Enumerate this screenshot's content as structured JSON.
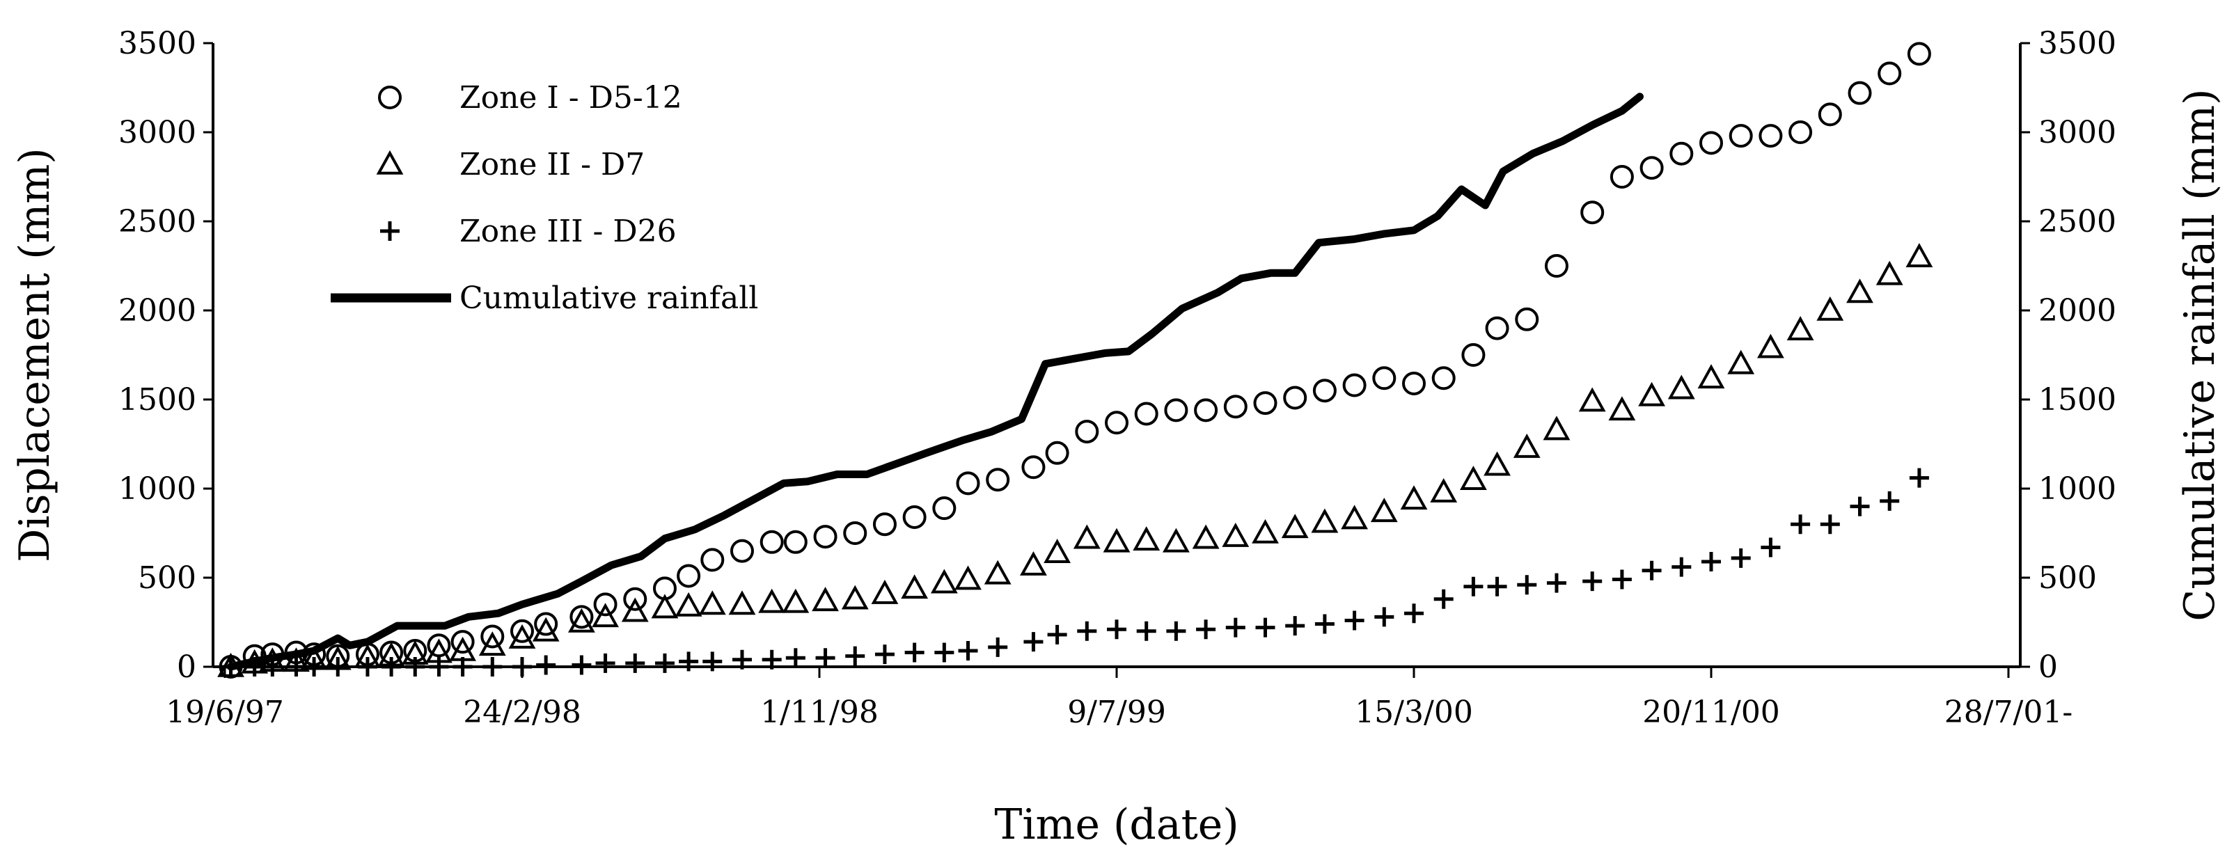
{
  "chart_data": {
    "type": "line-scatter-dual-axis",
    "xlabel": "Time (date)",
    "ylabel_left": "Displacement (mm)",
    "ylabel_right": "Cumulative rainfall (mm)",
    "x_domain": [
      0,
      1500
    ],
    "ylim_left": [
      0,
      3500
    ],
    "ylim_right": [
      0,
      3500
    ],
    "y_ticks": [
      0,
      500,
      1000,
      1500,
      2000,
      2500,
      3000,
      3500
    ],
    "x_ticks": [
      {
        "label": "19/6/97",
        "x": 0
      },
      {
        "label": "24/2/98",
        "x": 250
      },
      {
        "label": "1/11/98",
        "x": 500
      },
      {
        "label": "9/7/99",
        "x": 750
      },
      {
        "label": "15/3/00",
        "x": 1000
      },
      {
        "label": "20/11/00",
        "x": 1250
      },
      {
        "label": "28/7/01-",
        "x": 1500
      }
    ],
    "legend": [
      {
        "label": "Zone I - D5-12",
        "marker": "circle"
      },
      {
        "label": "Zone II - D7",
        "marker": "triangle"
      },
      {
        "label": "Zone III - D26",
        "marker": "plus"
      },
      {
        "label": "Cumulative rainfall",
        "marker": "line"
      }
    ],
    "series": [
      {
        "name": "Zone I - D5-12",
        "marker": "circle",
        "axis": "left",
        "points": [
          [
            5,
            0
          ],
          [
            25,
            60
          ],
          [
            40,
            70
          ],
          [
            60,
            80
          ],
          [
            75,
            70
          ],
          [
            95,
            60
          ],
          [
            120,
            70
          ],
          [
            140,
            80
          ],
          [
            160,
            90
          ],
          [
            180,
            120
          ],
          [
            200,
            140
          ],
          [
            225,
            170
          ],
          [
            250,
            200
          ],
          [
            270,
            240
          ],
          [
            300,
            280
          ],
          [
            320,
            350
          ],
          [
            345,
            380
          ],
          [
            370,
            440
          ],
          [
            390,
            510
          ],
          [
            410,
            600
          ],
          [
            435,
            650
          ],
          [
            460,
            700
          ],
          [
            480,
            700
          ],
          [
            505,
            730
          ],
          [
            530,
            750
          ],
          [
            555,
            800
          ],
          [
            580,
            840
          ],
          [
            605,
            890
          ],
          [
            625,
            1030
          ],
          [
            650,
            1050
          ],
          [
            680,
            1120
          ],
          [
            700,
            1200
          ],
          [
            725,
            1320
          ],
          [
            750,
            1370
          ],
          [
            775,
            1420
          ],
          [
            800,
            1440
          ],
          [
            825,
            1440
          ],
          [
            850,
            1460
          ],
          [
            875,
            1480
          ],
          [
            900,
            1510
          ],
          [
            925,
            1550
          ],
          [
            950,
            1580
          ],
          [
            975,
            1620
          ],
          [
            1000,
            1590
          ],
          [
            1025,
            1620
          ],
          [
            1050,
            1750
          ],
          [
            1070,
            1900
          ],
          [
            1095,
            1950
          ],
          [
            1120,
            2250
          ],
          [
            1150,
            2550
          ],
          [
            1175,
            2750
          ],
          [
            1200,
            2800
          ],
          [
            1225,
            2880
          ],
          [
            1250,
            2940
          ],
          [
            1275,
            2980
          ],
          [
            1300,
            2980
          ],
          [
            1325,
            3000
          ],
          [
            1350,
            3100
          ],
          [
            1375,
            3220
          ],
          [
            1400,
            3330
          ],
          [
            1425,
            3440
          ]
        ]
      },
      {
        "name": "Zone II - D7",
        "marker": "triangle",
        "axis": "left",
        "points": [
          [
            5,
            0
          ],
          [
            25,
            20
          ],
          [
            40,
            30
          ],
          [
            60,
            30
          ],
          [
            75,
            40
          ],
          [
            95,
            40
          ],
          [
            120,
            50
          ],
          [
            140,
            60
          ],
          [
            160,
            70
          ],
          [
            180,
            80
          ],
          [
            200,
            90
          ],
          [
            225,
            120
          ],
          [
            250,
            160
          ],
          [
            270,
            200
          ],
          [
            300,
            250
          ],
          [
            320,
            280
          ],
          [
            345,
            310
          ],
          [
            370,
            330
          ],
          [
            390,
            340
          ],
          [
            410,
            350
          ],
          [
            435,
            350
          ],
          [
            460,
            360
          ],
          [
            480,
            360
          ],
          [
            505,
            370
          ],
          [
            530,
            380
          ],
          [
            555,
            410
          ],
          [
            580,
            440
          ],
          [
            605,
            470
          ],
          [
            625,
            490
          ],
          [
            650,
            520
          ],
          [
            680,
            570
          ],
          [
            700,
            640
          ],
          [
            725,
            720
          ],
          [
            750,
            700
          ],
          [
            775,
            710
          ],
          [
            800,
            700
          ],
          [
            825,
            720
          ],
          [
            850,
            730
          ],
          [
            875,
            750
          ],
          [
            900,
            780
          ],
          [
            925,
            810
          ],
          [
            950,
            830
          ],
          [
            975,
            870
          ],
          [
            1000,
            940
          ],
          [
            1025,
            980
          ],
          [
            1050,
            1050
          ],
          [
            1070,
            1130
          ],
          [
            1095,
            1230
          ],
          [
            1120,
            1330
          ],
          [
            1150,
            1490
          ],
          [
            1175,
            1440
          ],
          [
            1200,
            1520
          ],
          [
            1225,
            1560
          ],
          [
            1250,
            1620
          ],
          [
            1275,
            1700
          ],
          [
            1300,
            1790
          ],
          [
            1325,
            1890
          ],
          [
            1350,
            2000
          ],
          [
            1375,
            2100
          ],
          [
            1400,
            2200
          ],
          [
            1425,
            2300
          ]
        ]
      },
      {
        "name": "Zone III - D26",
        "marker": "plus",
        "axis": "left",
        "points": [
          [
            5,
            0
          ],
          [
            25,
            0
          ],
          [
            40,
            0
          ],
          [
            60,
            0
          ],
          [
            75,
            0
          ],
          [
            95,
            0
          ],
          [
            120,
            0
          ],
          [
            140,
            0
          ],
          [
            160,
            0
          ],
          [
            180,
            0
          ],
          [
            200,
            0
          ],
          [
            225,
            0
          ],
          [
            250,
            0
          ],
          [
            270,
            10
          ],
          [
            300,
            10
          ],
          [
            320,
            20
          ],
          [
            345,
            20
          ],
          [
            370,
            20
          ],
          [
            390,
            30
          ],
          [
            410,
            30
          ],
          [
            435,
            40
          ],
          [
            460,
            40
          ],
          [
            480,
            50
          ],
          [
            505,
            50
          ],
          [
            530,
            60
          ],
          [
            555,
            70
          ],
          [
            580,
            80
          ],
          [
            605,
            80
          ],
          [
            625,
            90
          ],
          [
            650,
            110
          ],
          [
            680,
            140
          ],
          [
            700,
            180
          ],
          [
            725,
            200
          ],
          [
            750,
            210
          ],
          [
            775,
            200
          ],
          [
            800,
            200
          ],
          [
            825,
            210
          ],
          [
            850,
            220
          ],
          [
            875,
            220
          ],
          [
            900,
            230
          ],
          [
            925,
            240
          ],
          [
            950,
            260
          ],
          [
            975,
            280
          ],
          [
            1000,
            300
          ],
          [
            1025,
            380
          ],
          [
            1050,
            450
          ],
          [
            1070,
            450
          ],
          [
            1095,
            460
          ],
          [
            1120,
            470
          ],
          [
            1150,
            480
          ],
          [
            1175,
            490
          ],
          [
            1200,
            540
          ],
          [
            1225,
            560
          ],
          [
            1250,
            590
          ],
          [
            1275,
            610
          ],
          [
            1300,
            670
          ],
          [
            1325,
            800
          ],
          [
            1350,
            800
          ],
          [
            1375,
            900
          ],
          [
            1400,
            930
          ],
          [
            1425,
            1060
          ]
        ]
      },
      {
        "name": "Cumulative rainfall",
        "marker": "line",
        "axis": "right",
        "points": [
          [
            5,
            0
          ],
          [
            25,
            30
          ],
          [
            40,
            50
          ],
          [
            60,
            70
          ],
          [
            75,
            90
          ],
          [
            95,
            160
          ],
          [
            105,
            120
          ],
          [
            120,
            140
          ],
          [
            145,
            230
          ],
          [
            170,
            230
          ],
          [
            185,
            230
          ],
          [
            205,
            280
          ],
          [
            230,
            300
          ],
          [
            250,
            350
          ],
          [
            280,
            410
          ],
          [
            300,
            480
          ],
          [
            325,
            570
          ],
          [
            350,
            620
          ],
          [
            370,
            720
          ],
          [
            395,
            770
          ],
          [
            420,
            850
          ],
          [
            445,
            940
          ],
          [
            470,
            1030
          ],
          [
            490,
            1040
          ],
          [
            515,
            1080
          ],
          [
            540,
            1080
          ],
          [
            565,
            1140
          ],
          [
            590,
            1200
          ],
          [
            620,
            1270
          ],
          [
            645,
            1320
          ],
          [
            670,
            1390
          ],
          [
            690,
            1700
          ],
          [
            715,
            1730
          ],
          [
            740,
            1760
          ],
          [
            760,
            1770
          ],
          [
            780,
            1870
          ],
          [
            805,
            2010
          ],
          [
            835,
            2100
          ],
          [
            855,
            2180
          ],
          [
            880,
            2210
          ],
          [
            900,
            2210
          ],
          [
            920,
            2380
          ],
          [
            950,
            2400
          ],
          [
            975,
            2430
          ],
          [
            1000,
            2450
          ],
          [
            1020,
            2530
          ],
          [
            1040,
            2680
          ],
          [
            1060,
            2590
          ],
          [
            1075,
            2780
          ],
          [
            1100,
            2880
          ],
          [
            1125,
            2950
          ],
          [
            1150,
            3040
          ],
          [
            1175,
            3120
          ],
          [
            1190,
            3200
          ]
        ]
      }
    ]
  }
}
